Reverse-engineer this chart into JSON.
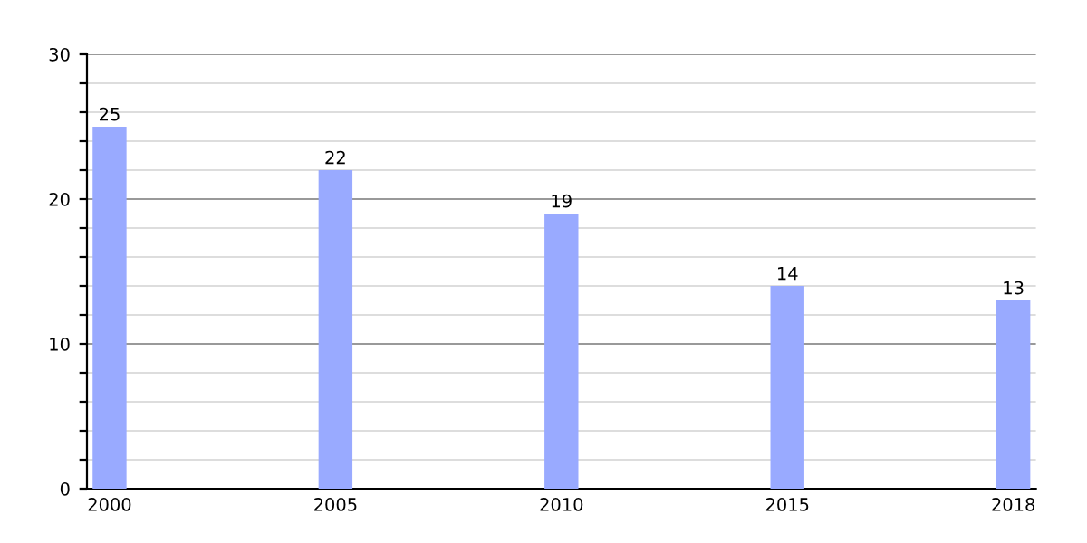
{
  "chart_data": {
    "type": "bar",
    "categories": [
      "2000",
      "2005",
      "2010",
      "2015",
      "2018"
    ],
    "values": [
      25,
      22,
      19,
      14,
      13
    ],
    "color": "#99aaff",
    "ylim": [
      0,
      30
    ],
    "yticks": [
      0,
      {
        "value": 2,
        "label": null
      },
      {
        "value": 4,
        "label": null
      },
      {
        "value": 6,
        "label": null
      },
      {
        "value": 8,
        "label": null
      },
      10,
      {
        "value": 12,
        "label": null
      },
      {
        "value": 14,
        "label": null
      },
      {
        "value": 16,
        "label": null
      },
      {
        "value": 18,
        "label": null
      },
      20,
      {
        "value": 22,
        "label": null
      },
      {
        "value": 24,
        "label": null
      },
      {
        "value": 26,
        "label": null
      },
      {
        "value": 28,
        "label": null
      },
      30
    ],
    "grid": "y",
    "data_labels": true
  }
}
